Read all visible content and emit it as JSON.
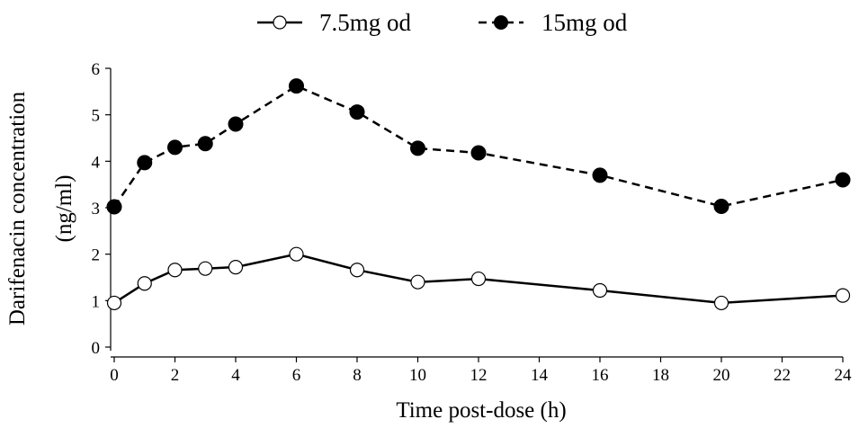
{
  "chart_data": {
    "type": "line",
    "title": "",
    "xlabel": "Time post-dose (h)",
    "ylabel_line1": "Darifenacin concentration",
    "ylabel_line2": "(ng/ml)",
    "xlim": [
      0,
      24
    ],
    "ylim": [
      0,
      6
    ],
    "xticks": [
      0,
      2,
      4,
      6,
      8,
      10,
      12,
      14,
      16,
      18,
      20,
      22,
      24
    ],
    "yticks": [
      0,
      1,
      2,
      3,
      4,
      5,
      6
    ],
    "grid": false,
    "legend_position": "top-center",
    "x": [
      0,
      1,
      2,
      3,
      4,
      6,
      8,
      10,
      12,
      16,
      20,
      24
    ],
    "series": [
      {
        "name": "7.5mg od",
        "marker": "open-circle",
        "line_style": "solid",
        "color": "#000000",
        "values": [
          0.95,
          1.37,
          1.66,
          1.69,
          1.72,
          2.0,
          1.66,
          1.4,
          1.47,
          1.22,
          0.95,
          1.11
        ]
      },
      {
        "name": "15mg od",
        "marker": "filled-circle",
        "line_style": "dashed",
        "color": "#000000",
        "values": [
          3.02,
          3.97,
          4.3,
          4.38,
          4.8,
          5.62,
          5.06,
          4.28,
          4.18,
          3.7,
          3.03,
          3.6
        ]
      }
    ]
  }
}
